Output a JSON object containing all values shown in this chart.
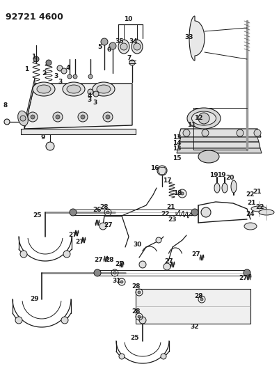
{
  "title": "92721 4600",
  "bg": "#ffffff",
  "line_color": "#1a1a1a",
  "title_fontsize": 9,
  "label_fontsize": 6.5
}
